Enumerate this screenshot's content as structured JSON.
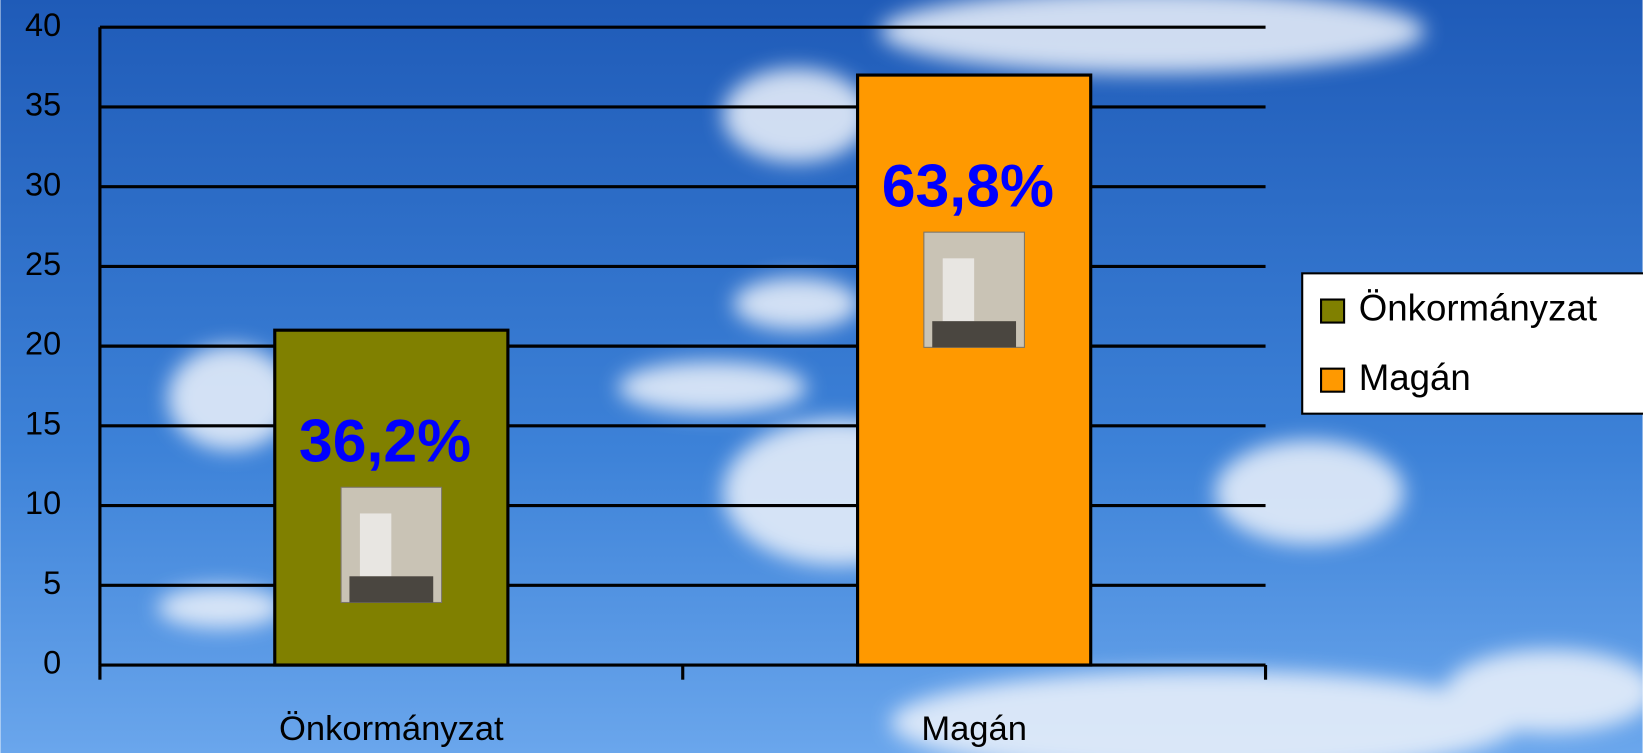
{
  "chart_data": {
    "type": "bar",
    "categories": [
      "Önkormányzat",
      "Magán"
    ],
    "values": [
      21,
      37
    ],
    "colors": [
      "#808000",
      "#ff9900"
    ],
    "annotations": [
      "36,2%",
      "63,8%"
    ],
    "ylim": [
      0,
      40
    ],
    "yticks": [
      0,
      5,
      10,
      15,
      20,
      25,
      30,
      35,
      40
    ],
    "grid": true,
    "legend": "right"
  }
}
